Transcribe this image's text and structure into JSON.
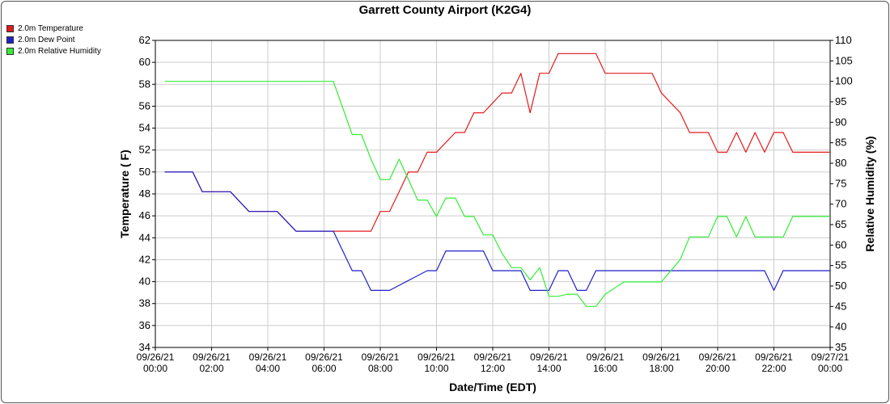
{
  "chart_data": {
    "type": "line",
    "title": "Garrett County Airport (K2G4)",
    "xlabel": "Date/Time (EDT)",
    "ylabel": "Temperature ( F)",
    "y2label": "Relative Humidity (%)",
    "x_ticks": [
      "09/26/21\n00:00",
      "09/26/21\n02:00",
      "09/26/21\n04:00",
      "09/26/21\n06:00",
      "09/26/21\n08:00",
      "09/26/21\n10:00",
      "09/26/21\n12:00",
      "09/26/21\n14:00",
      "09/26/21\n16:00",
      "09/26/21\n18:00",
      "09/26/21\n20:00",
      "09/26/21\n22:00",
      "09/27/21\n00:00"
    ],
    "xlim_hours": [
      0,
      24
    ],
    "ylim": [
      34,
      62
    ],
    "y_ticks": [
      34,
      36,
      38,
      40,
      42,
      44,
      46,
      48,
      50,
      52,
      54,
      56,
      58,
      60,
      62
    ],
    "y2lim": [
      35,
      110
    ],
    "y2_ticks": [
      35,
      40,
      45,
      50,
      55,
      60,
      65,
      70,
      75,
      80,
      85,
      90,
      95,
      100,
      105,
      110
    ],
    "grid": true,
    "legend_position": "top-left",
    "series": [
      {
        "name": "2.0m Temperature",
        "color": "#e41a1c",
        "axis": "left",
        "x": [
          0.33,
          1.33,
          1.67,
          2.67,
          3.33,
          4.33,
          5.0,
          6.0,
          6.67,
          7.67,
          8.0,
          8.33,
          8.67,
          9.0,
          9.33,
          9.67,
          10.0,
          10.67,
          11.0,
          11.33,
          11.67,
          12.33,
          12.67,
          13.0,
          13.33,
          13.67,
          14.0,
          14.33,
          14.67,
          15.0,
          15.67,
          16.0,
          16.67,
          17.0,
          17.67,
          18.0,
          18.67,
          19.0,
          19.67,
          20.0,
          20.33,
          20.67,
          21.0,
          21.33,
          21.67,
          22.0,
          22.33,
          22.67,
          23.0,
          24.0
        ],
        "y": [
          50.0,
          50.0,
          48.2,
          48.2,
          46.4,
          46.4,
          44.6,
          44.6,
          44.6,
          44.6,
          46.4,
          46.4,
          48.2,
          50.0,
          50.0,
          51.8,
          51.8,
          53.6,
          53.6,
          55.4,
          55.4,
          57.2,
          57.2,
          59.0,
          55.4,
          59.0,
          59.0,
          60.8,
          60.8,
          60.8,
          60.8,
          59.0,
          59.0,
          59.0,
          59.0,
          57.2,
          55.4,
          53.6,
          53.6,
          51.8,
          51.8,
          53.6,
          51.8,
          53.6,
          51.8,
          53.6,
          53.6,
          51.8,
          51.8,
          51.8
        ]
      },
      {
        "name": "2.0m Dew Point",
        "color": "#1f1fcc",
        "axis": "left",
        "x": [
          0.33,
          1.33,
          1.67,
          2.67,
          3.33,
          4.33,
          5.0,
          6.0,
          6.33,
          7.0,
          7.33,
          7.67,
          8.0,
          8.33,
          9.67,
          10.0,
          10.33,
          11.67,
          12.0,
          12.67,
          13.0,
          13.33,
          13.67,
          14.0,
          14.33,
          14.67,
          15.0,
          15.33,
          15.67,
          16.0,
          21.67,
          22.0,
          22.33,
          24.0
        ],
        "y": [
          50.0,
          50.0,
          48.2,
          48.2,
          46.4,
          46.4,
          44.6,
          44.6,
          44.6,
          41.0,
          41.0,
          39.2,
          39.2,
          39.2,
          41.0,
          41.0,
          42.8,
          42.8,
          41.0,
          41.0,
          41.0,
          39.2,
          39.2,
          39.2,
          41.0,
          41.0,
          39.2,
          39.2,
          41.0,
          41.0,
          41.0,
          39.2,
          41.0,
          41.0
        ]
      },
      {
        "name": "2.0m Relative Humidity",
        "color": "#33ee33",
        "axis": "right",
        "x": [
          0.33,
          6.0,
          6.33,
          7.0,
          7.33,
          7.67,
          8.0,
          8.33,
          8.67,
          9.0,
          9.33,
          9.67,
          10.0,
          10.33,
          10.67,
          11.0,
          11.33,
          11.67,
          12.0,
          12.33,
          12.67,
          13.0,
          13.33,
          13.67,
          14.0,
          14.33,
          14.67,
          15.0,
          15.33,
          15.67,
          16.0,
          16.67,
          17.0,
          17.67,
          18.0,
          18.67,
          19.0,
          19.67,
          20.0,
          20.33,
          20.67,
          21.0,
          21.33,
          21.67,
          22.0,
          22.33,
          22.67,
          23.0,
          24.0
        ],
        "y": [
          100,
          100,
          100,
          87,
          87,
          81,
          76,
          76,
          81,
          76,
          71,
          71,
          67,
          71.5,
          71.5,
          67,
          67,
          62.5,
          62.5,
          58,
          54.5,
          54.5,
          51.5,
          54.5,
          47.5,
          47.5,
          48,
          48,
          45,
          45,
          48,
          51,
          51,
          51,
          51,
          56.5,
          62,
          62,
          67,
          67,
          62,
          67,
          62,
          62,
          62,
          62,
          67,
          67,
          67
        ]
      }
    ]
  }
}
